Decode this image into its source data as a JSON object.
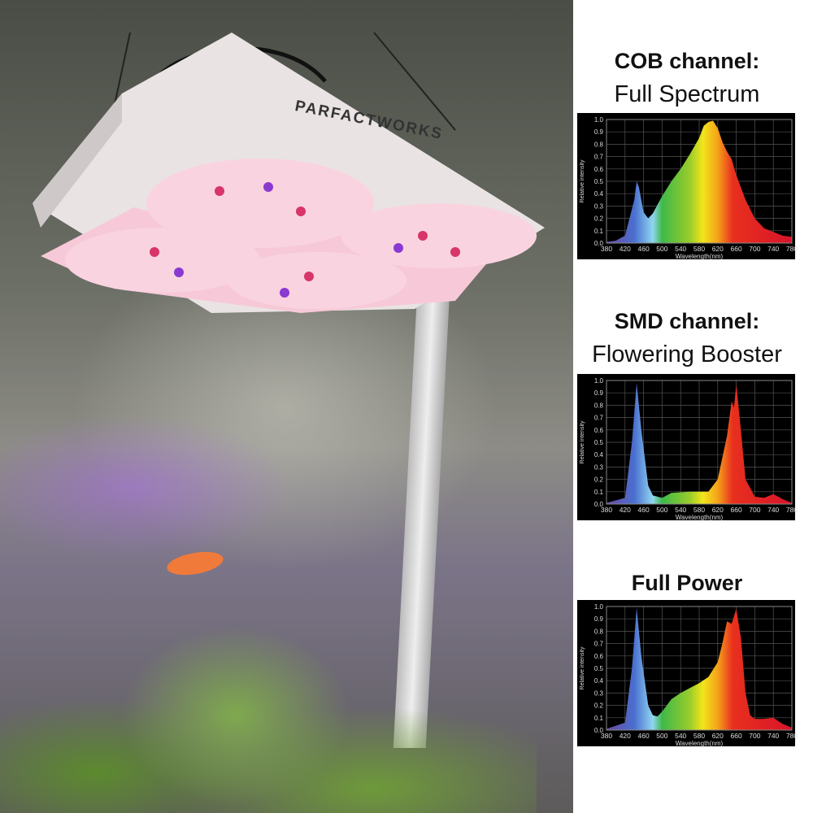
{
  "brand": "PARFACTWORKS",
  "sections": [
    {
      "title": "COB channel:",
      "subtitle": "Full Spectrum"
    },
    {
      "title": "SMD channel:",
      "subtitle": "Flowering Booster"
    },
    {
      "title": "Full Power",
      "subtitle": ""
    }
  ],
  "chart_data": [
    {
      "type": "area",
      "xlabel": "Wavelength(nm)",
      "ylabel": "Relative intensity",
      "xlim": [
        380,
        780
      ],
      "ylim": [
        0,
        1.0
      ],
      "grid": true,
      "xticks": [
        380,
        420,
        460,
        500,
        540,
        580,
        620,
        660,
        700,
        740,
        780
      ],
      "yticks": [
        0.0,
        0.1,
        0.2,
        0.3,
        0.4,
        0.5,
        0.6,
        0.7,
        0.8,
        0.9,
        1.0
      ],
      "x": [
        380,
        400,
        420,
        440,
        445,
        450,
        460,
        470,
        480,
        500,
        520,
        540,
        560,
        580,
        590,
        600,
        610,
        620,
        630,
        640,
        650,
        660,
        680,
        700,
        720,
        740,
        760,
        780
      ],
      "y": [
        0.01,
        0.02,
        0.06,
        0.35,
        0.5,
        0.45,
        0.25,
        0.2,
        0.24,
        0.38,
        0.5,
        0.6,
        0.72,
        0.85,
        0.95,
        0.98,
        0.99,
        0.93,
        0.82,
        0.74,
        0.68,
        0.55,
        0.35,
        0.2,
        0.12,
        0.09,
        0.06,
        0.05
      ]
    },
    {
      "type": "area",
      "xlabel": "Wavelength(nm)",
      "ylabel": "Relative intensity",
      "xlim": [
        380,
        780
      ],
      "ylim": [
        0,
        1.0
      ],
      "grid": true,
      "xticks": [
        380,
        420,
        460,
        500,
        540,
        580,
        620,
        660,
        700,
        740,
        780
      ],
      "yticks": [
        0.0,
        0.1,
        0.2,
        0.3,
        0.4,
        0.5,
        0.6,
        0.7,
        0.8,
        0.9,
        1.0
      ],
      "x": [
        380,
        420,
        435,
        445,
        455,
        470,
        480,
        500,
        520,
        560,
        600,
        620,
        640,
        650,
        655,
        660,
        670,
        680,
        700,
        720,
        740,
        760,
        780
      ],
      "y": [
        0.01,
        0.05,
        0.5,
        0.98,
        0.6,
        0.15,
        0.07,
        0.05,
        0.09,
        0.1,
        0.1,
        0.2,
        0.55,
        0.83,
        0.78,
        0.97,
        0.6,
        0.2,
        0.06,
        0.05,
        0.08,
        0.04,
        0.01
      ]
    },
    {
      "type": "area",
      "xlabel": "Wavelength(nm)",
      "ylabel": "Relative intensity",
      "xlim": [
        380,
        780
      ],
      "ylim": [
        0,
        1.0
      ],
      "grid": true,
      "xticks": [
        380,
        420,
        460,
        500,
        540,
        580,
        620,
        660,
        700,
        740,
        780
      ],
      "yticks": [
        0.0,
        0.1,
        0.2,
        0.3,
        0.4,
        0.5,
        0.6,
        0.7,
        0.8,
        0.9,
        1.0
      ],
      "x": [
        380,
        420,
        435,
        445,
        455,
        470,
        480,
        490,
        500,
        520,
        540,
        560,
        580,
        600,
        620,
        630,
        640,
        650,
        660,
        670,
        680,
        690,
        700,
        720,
        740,
        760,
        780
      ],
      "y": [
        0.01,
        0.06,
        0.5,
        0.99,
        0.6,
        0.2,
        0.12,
        0.11,
        0.15,
        0.25,
        0.3,
        0.34,
        0.38,
        0.43,
        0.55,
        0.7,
        0.88,
        0.86,
        0.98,
        0.75,
        0.3,
        0.12,
        0.09,
        0.09,
        0.1,
        0.05,
        0.02
      ]
    }
  ]
}
